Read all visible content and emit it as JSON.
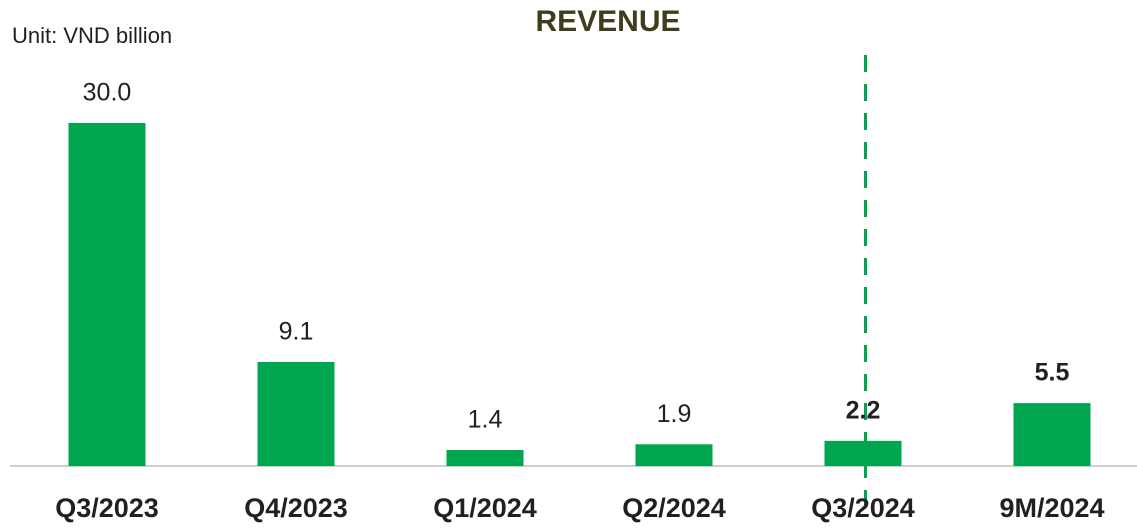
{
  "chart_data": {
    "type": "bar",
    "title": "REVENUE",
    "unit_label": "Unit: VND billion",
    "categories": [
      "Q3/2023",
      "Q4/2023",
      "Q1/2024",
      "Q2/2024",
      "Q3/2024",
      "9M/2024"
    ],
    "values": [
      30,
      9.1,
      1.4,
      1.9,
      2.2,
      5.5
    ],
    "value_labels": [
      "30.0",
      "9.1",
      "1.4",
      "1.9",
      "2.2",
      "5.5"
    ],
    "value_label_bold": [
      false,
      false,
      false,
      false,
      true,
      true
    ],
    "color": "#00a54f"
  }
}
